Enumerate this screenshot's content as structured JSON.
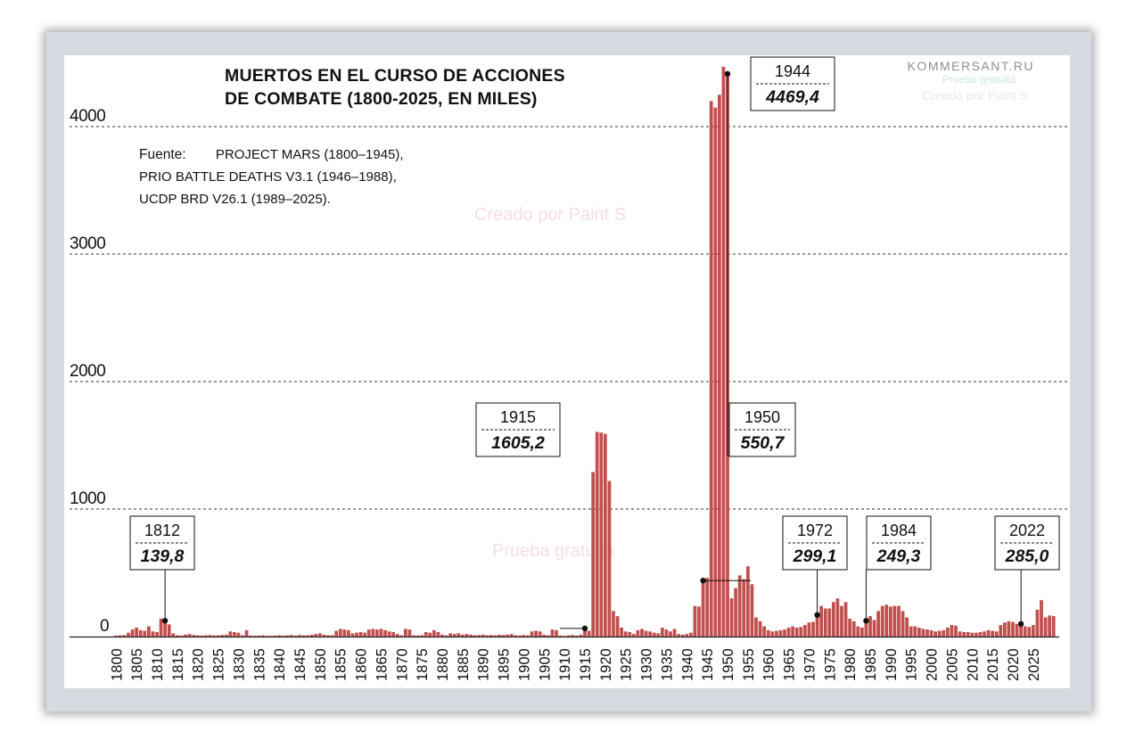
{
  "header": {
    "title_line1": "MUERTOS EN EL CURSO DE ACCIONES",
    "title_line2": "DE COMBATE (1800-2025, EN MILES)",
    "brand": "KOMMERSANT.RU"
  },
  "source": {
    "label": "Fuente:",
    "line1": "PROJECT MARS (1800–1945),",
    "line2": "PRIO BATTLE DEATHS V3.1 (1946–1988),",
    "line3": "UCDP BRD V26.1 (1989–2025)."
  },
  "watermarks": {
    "w1": "Prueba gratuita",
    "w2": "Creado por Paint S",
    "w3": "Creado por Paint S",
    "w4": "Prueba gratuita"
  },
  "colors": {
    "bar": "#c0504d",
    "grid": "#333333"
  },
  "chart_data": {
    "type": "bar",
    "title": "MUERTOS EN EL CURSO DE ACCIONES DE COMBATE (1800-2025, EN MILES)",
    "xlabel": "",
    "ylabel": "",
    "ylim": [
      0,
      4000
    ],
    "yticks": [
      "0",
      "1000",
      "2000",
      "3000",
      "4000"
    ],
    "grid": "horizontal dashed",
    "x_start": 1800,
    "x_end": 2025,
    "xticks": [
      "1800",
      "1805",
      "1810",
      "1815",
      "1820",
      "1825",
      "1830",
      "1835",
      "1840",
      "1845",
      "1850",
      "1855",
      "1860",
      "1865",
      "1870",
      "1875",
      "1880",
      "1885",
      "1890",
      "1895",
      "1900",
      "1905",
      "1910",
      "1915",
      "1920",
      "1925",
      "1930",
      "1935",
      "1940",
      "1945",
      "1950",
      "1955",
      "1960",
      "1965",
      "1970",
      "1975",
      "1980",
      "1985",
      "1990",
      "1995",
      "2000",
      "2005",
      "2010",
      "2015",
      "2020",
      "2025"
    ],
    "values": [
      8,
      10,
      12,
      30,
      55,
      70,
      50,
      45,
      80,
      40,
      35,
      139.8,
      110,
      95,
      25,
      10,
      8,
      15,
      20,
      12,
      10,
      8,
      10,
      12,
      8,
      10,
      12,
      15,
      40,
      35,
      30,
      10,
      50,
      8,
      6,
      8,
      10,
      6,
      6,
      8,
      10,
      8,
      10,
      12,
      8,
      12,
      10,
      10,
      14,
      20,
      25,
      15,
      10,
      10,
      45,
      60,
      55,
      50,
      25,
      30,
      35,
      30,
      55,
      60,
      55,
      60,
      50,
      40,
      35,
      20,
      10,
      60,
      55,
      10,
      8,
      10,
      35,
      30,
      50,
      35,
      15,
      10,
      25,
      20,
      25,
      15,
      20,
      15,
      10,
      12,
      15,
      10,
      12,
      10,
      14,
      12,
      15,
      20,
      10,
      8,
      12,
      10,
      40,
      45,
      40,
      15,
      10,
      55,
      50,
      8,
      5,
      10,
      12,
      8,
      15,
      50,
      45,
      1290,
      1605.2,
      1600,
      1590,
      1220,
      200,
      160,
      70,
      40,
      35,
      20,
      50,
      60,
      45,
      40,
      30,
      25,
      70,
      55,
      40,
      60,
      20,
      15,
      20,
      30,
      240,
      235,
      425,
      460,
      4200,
      4150,
      4250,
      4469.4,
      4400,
      300,
      380,
      480,
      450,
      550.7,
      410,
      150,
      120,
      80,
      50,
      40,
      45,
      50,
      55,
      70,
      80,
      70,
      75,
      90,
      110,
      115,
      155,
      240,
      220,
      220,
      270,
      299.1,
      240,
      270,
      140,
      120,
      80,
      70,
      110,
      160,
      130,
      200,
      240,
      249.3,
      235,
      240,
      240,
      200,
      150,
      80,
      80,
      70,
      60,
      55,
      50,
      40,
      45,
      50,
      70,
      90,
      85,
      40,
      35,
      35,
      30,
      30,
      35,
      40,
      50,
      45,
      40,
      90,
      110,
      120,
      115,
      100,
      85,
      80,
      75,
      90,
      210,
      285.0,
      150,
      165,
      160
    ],
    "annotations": [
      {
        "year": "1812",
        "value": "139,8"
      },
      {
        "year": "1915",
        "value": "1605,2"
      },
      {
        "year": "1944",
        "value": "4469,4"
      },
      {
        "year": "1950",
        "value": "550,7"
      },
      {
        "year": "1972",
        "value": "299,1"
      },
      {
        "year": "1984",
        "value": "249,3"
      },
      {
        "year": "2022",
        "value": "285,0"
      }
    ]
  }
}
